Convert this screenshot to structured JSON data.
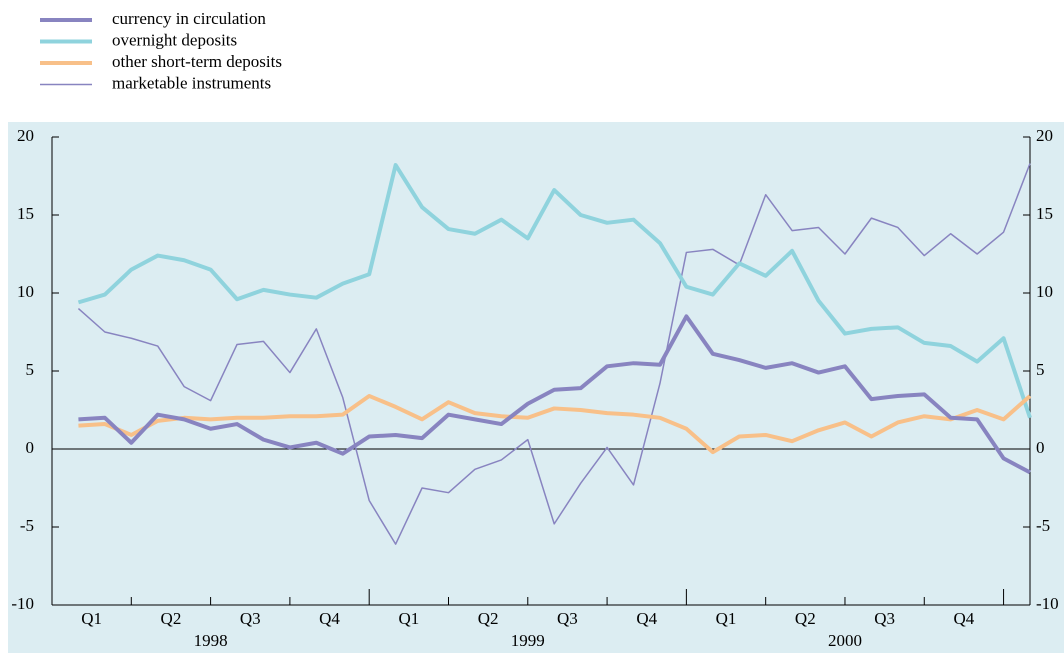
{
  "chart_data": {
    "type": "line",
    "x": [
      1,
      2,
      3,
      4,
      5,
      6,
      7,
      8,
      9,
      10,
      11,
      12,
      13,
      14,
      15,
      16,
      17,
      18,
      19,
      20,
      21,
      22,
      23,
      24,
      25,
      26,
      27,
      28,
      29,
      30,
      31,
      32,
      33,
      34,
      35,
      36,
      37
    ],
    "xlim": [
      0,
      37
    ],
    "xticks": [
      3,
      6,
      9,
      12,
      15,
      18,
      21,
      24,
      27,
      30,
      33,
      36
    ],
    "quarter_labels": [
      "Q1",
      "Q2",
      "Q3",
      "Q4",
      "Q1",
      "Q2",
      "Q3",
      "Q4",
      "Q1",
      "Q2",
      "Q3",
      "Q4"
    ],
    "year_labels": [
      "1998",
      "1999",
      "2000"
    ],
    "ylim": [
      -10,
      20
    ],
    "yticks": [
      -10,
      -5,
      0,
      5,
      10,
      15,
      20
    ],
    "series": [
      {
        "name": "currency in circulation",
        "color": "#8884c0",
        "width": 4,
        "values": [
          1.9,
          2.0,
          0.4,
          2.2,
          1.9,
          1.3,
          1.6,
          0.6,
          0.1,
          0.4,
          -0.3,
          0.8,
          0.9,
          0.7,
          2.2,
          1.9,
          1.6,
          2.9,
          3.8,
          3.9,
          5.3,
          5.5,
          5.4,
          8.5,
          6.1,
          5.7,
          5.2,
          5.5,
          4.9,
          5.3,
          3.2,
          3.4,
          3.5,
          2.0,
          1.9,
          -0.6,
          -1.5
        ]
      },
      {
        "name": "overnight deposits",
        "color": "#8fd3dd",
        "width": 4,
        "values": [
          9.4,
          9.9,
          11.5,
          12.4,
          12.1,
          11.5,
          9.6,
          10.2,
          9.9,
          9.7,
          10.6,
          11.2,
          18.2,
          15.5,
          14.1,
          13.8,
          14.7,
          13.5,
          16.6,
          15.0,
          14.5,
          14.7,
          13.2,
          10.4,
          9.9,
          11.9,
          11.1,
          12.7,
          9.5,
          7.4,
          7.7,
          7.8,
          6.8,
          6.6,
          5.6,
          7.1,
          2.0
        ]
      },
      {
        "name": "other short-term deposits",
        "color": "#f8c089",
        "width": 4,
        "values": [
          1.5,
          1.6,
          0.9,
          1.8,
          2.0,
          1.9,
          2.0,
          2.0,
          2.1,
          2.1,
          2.2,
          3.4,
          2.7,
          1.9,
          3.0,
          2.3,
          2.1,
          2.0,
          2.6,
          2.5,
          2.3,
          2.2,
          2.0,
          1.3,
          -0.2,
          0.8,
          0.9,
          0.5,
          1.2,
          1.7,
          0.8,
          1.7,
          2.1,
          1.9,
          2.5,
          1.9,
          3.4
        ]
      },
      {
        "name": "marketable instruments",
        "color": "#8884c0",
        "width": 1.5,
        "values": [
          9.0,
          7.5,
          7.1,
          6.6,
          4.0,
          3.1,
          6.7,
          6.9,
          4.9,
          7.7,
          3.3,
          -3.3,
          -6.1,
          -2.5,
          -2.8,
          -1.3,
          -0.7,
          0.6,
          -4.8,
          -2.2,
          0.1,
          -2.3,
          4.2,
          12.6,
          12.8,
          11.8,
          16.3,
          14.0,
          14.2,
          12.5,
          14.8,
          14.2,
          12.4,
          13.8,
          12.5,
          13.9,
          18.3
        ]
      }
    ]
  }
}
